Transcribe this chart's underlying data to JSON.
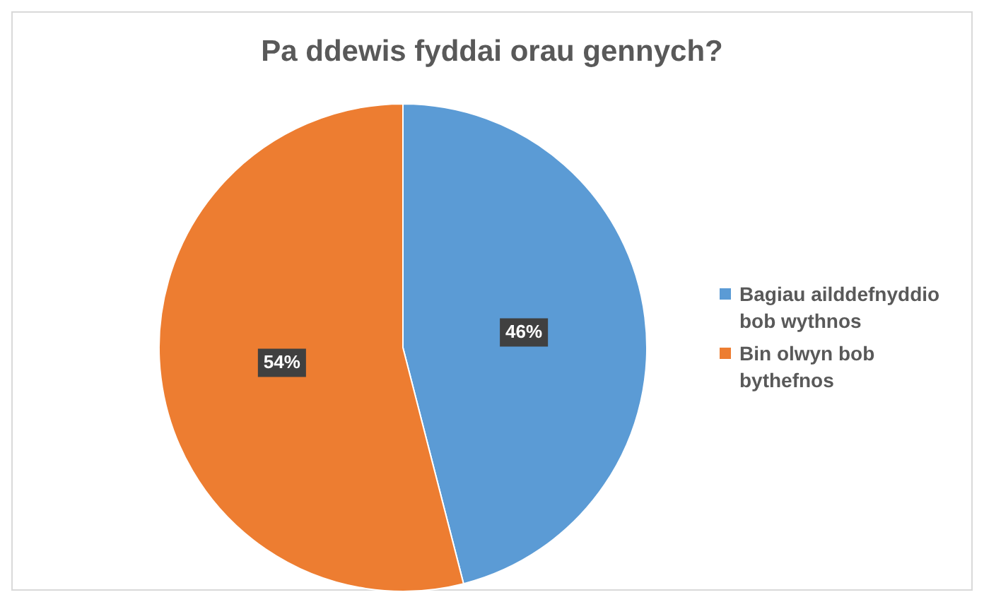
{
  "chart_data": {
    "type": "pie",
    "title": "Pa ddewis fyddai orau gennych?",
    "categories": [
      "Bagiau ailddefnyddio bob wythnos",
      "Bin olwyn bob bythefnos"
    ],
    "values": [
      46,
      54
    ],
    "colors": [
      "#5b9bd5",
      "#ed7d31"
    ],
    "value_labels": [
      "46%",
      "54%"
    ],
    "legend": "right"
  }
}
